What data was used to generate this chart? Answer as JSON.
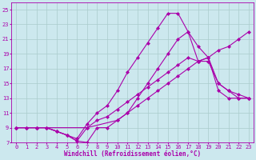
{
  "background_color": "#cce8ee",
  "grid_color": "#aacccc",
  "line_color": "#aa00aa",
  "marker": "D",
  "markersize": 2.0,
  "linewidth": 0.8,
  "xlabel": "Windchill (Refroidissement éolien,°C)",
  "xlabel_fontsize": 5.5,
  "tick_fontsize": 5.0,
  "xlim": [
    -0.5,
    23.5
  ],
  "ylim": [
    7,
    26
  ],
  "xticks": [
    0,
    1,
    2,
    3,
    4,
    5,
    6,
    7,
    8,
    9,
    10,
    11,
    12,
    13,
    14,
    15,
    16,
    17,
    18,
    19,
    20,
    21,
    22,
    23
  ],
  "yticks": [
    7,
    9,
    11,
    13,
    15,
    17,
    19,
    21,
    23,
    25
  ],
  "lines": [
    {
      "x": [
        0,
        1,
        2,
        3,
        4,
        5,
        6,
        7,
        8,
        9,
        10,
        11,
        12,
        13,
        14,
        15,
        16,
        17,
        18,
        19,
        20,
        21,
        22,
        23
      ],
      "y": [
        9,
        9,
        9,
        9,
        8.5,
        8,
        7.2,
        7.0,
        9,
        9,
        10,
        11,
        12,
        13,
        14,
        15,
        16,
        17,
        18,
        18,
        15,
        14,
        13,
        13
      ]
    },
    {
      "x": [
        0,
        1,
        2,
        3,
        4,
        5,
        6,
        7,
        8,
        9,
        10,
        11,
        12,
        13,
        14,
        15,
        16,
        17,
        18,
        19,
        20,
        21,
        22,
        23
      ],
      "y": [
        9,
        9,
        9,
        9,
        8.5,
        8,
        7.2,
        9,
        10,
        10.5,
        11.5,
        12.5,
        13.5,
        14.5,
        15.5,
        16.5,
        17.5,
        18.5,
        18,
        18.5,
        19.5,
        20,
        21,
        22
      ]
    },
    {
      "x": [
        0,
        1,
        2,
        3,
        4,
        5,
        6,
        7,
        8,
        9,
        10,
        11,
        12,
        13,
        14,
        15,
        16,
        17,
        18,
        19,
        20,
        21,
        22,
        23
      ],
      "y": [
        9,
        9,
        9,
        9,
        8.5,
        8,
        7.5,
        9.5,
        11,
        12,
        14,
        16.5,
        18.5,
        20.5,
        22.5,
        24.5,
        24.5,
        22,
        18,
        18.5,
        15,
        14,
        13.5,
        13
      ]
    },
    {
      "x": [
        0,
        2,
        7,
        10,
        11,
        12,
        13,
        14,
        15,
        16,
        17,
        18,
        19,
        20,
        21,
        22,
        23
      ],
      "y": [
        9,
        9,
        9,
        10,
        11,
        13,
        15,
        17,
        19,
        21,
        22,
        20,
        18.5,
        14,
        13,
        13,
        13
      ]
    }
  ]
}
